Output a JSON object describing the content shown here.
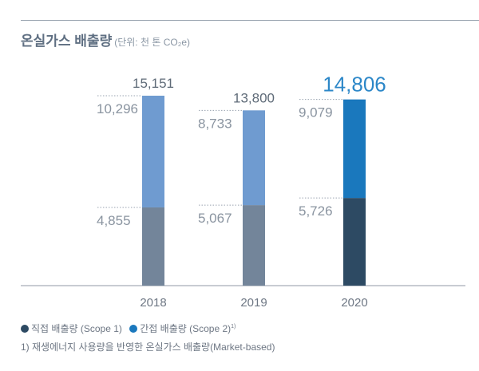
{
  "title": "온실가스 배출량",
  "unit": "(단위: 천 톤 CO₂e)",
  "chart_data": {
    "type": "bar",
    "stacked": true,
    "title": "온실가스 배출량",
    "categories": [
      "2018",
      "2019",
      "2020"
    ],
    "series": [
      {
        "name": "직접 배출량 (Scope 1)",
        "values": [
          4855,
          5067,
          5726
        ],
        "labels": [
          "4,855",
          "5,067",
          "5,726"
        ]
      },
      {
        "name": "간접 배출량 (Scope 2)",
        "values": [
          10296,
          8733,
          9079
        ],
        "labels": [
          "10,296",
          "8,733",
          "9,079"
        ]
      }
    ],
    "totals": [
      15151,
      13800,
      14806
    ],
    "total_labels": [
      "15,151",
      "13,800",
      "14,806"
    ],
    "colors": {
      "scope1_past": "#73859a",
      "scope2_past": "#6f9bd0",
      "scope1_current": "#2d4a63",
      "scope2_current": "#1a78bd",
      "highlight_total": "#2c87c8"
    },
    "legend_position": "bottom-left",
    "grid": false
  },
  "legend": {
    "scope1": "직접 배출량 (Scope 1)",
    "scope2": "간접 배출량 (Scope 2)",
    "scope2_sup": "1)"
  },
  "footnote": "1) 재생에너지 사용량을 반영한 온실가스 배출량(Market-based)"
}
